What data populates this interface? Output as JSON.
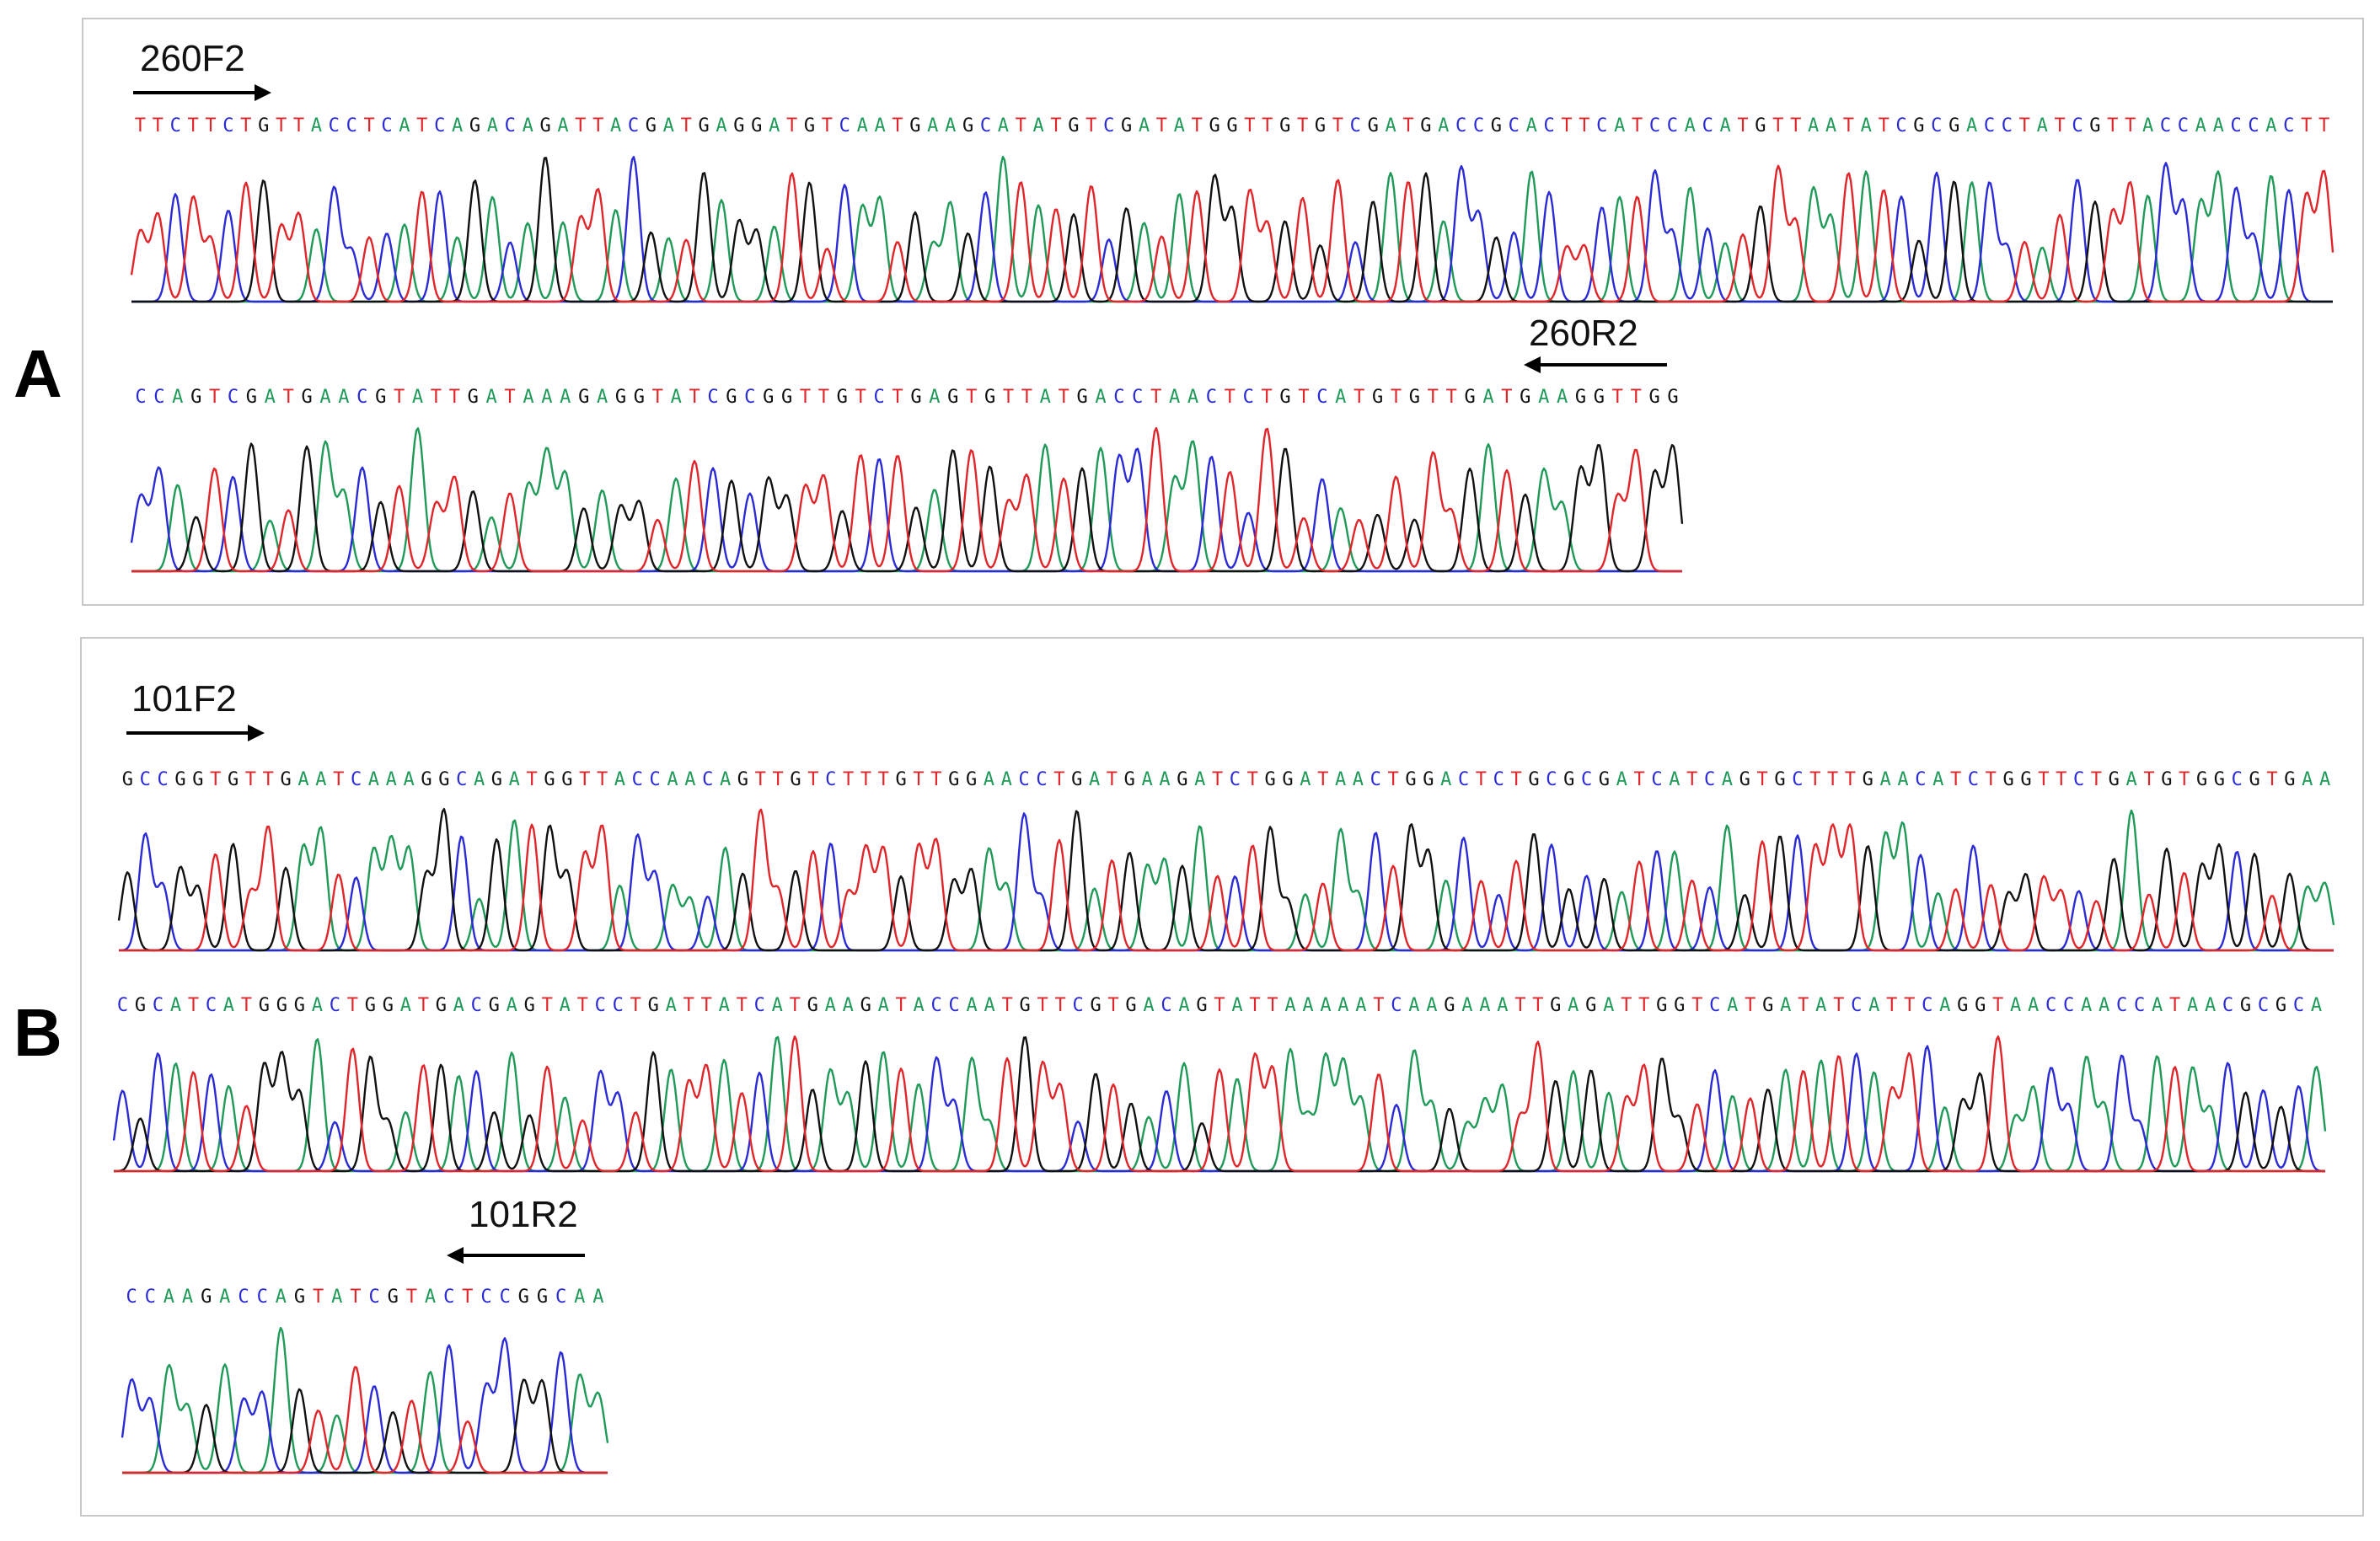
{
  "colors": {
    "A": "#1f9a59",
    "C": "#2b2bd6",
    "G": "#111111",
    "T": "#e0262a"
  },
  "panels": [
    {
      "letter": "A",
      "rows": [
        {
          "sequence": "TTCTTCTGTTACCTCATCAGACAGATTACGATGAGGATGTCAATGAAGCATATGTCGATATGGTTGTGTCGATGACCGCACTTCATCCACATGTTAATATCGCGACCTATCGTTACCAACCACTT"
        },
        {
          "sequence": "CCAGTCGATGAACGTATTGATAAAGAGGTATCGCGGTTGTCTGAGTGTTATGACCTAACTCTGTCATGTGTTGATGAAGGTTGG"
        }
      ],
      "primers": {
        "forward": "260F2",
        "reverse": "260R2"
      }
    },
    {
      "letter": "B",
      "rows": [
        {
          "sequence": "GCCGGTGTTGAATCAAAGGCAGATGGTTACCAACAGTTGTCTTTGTTGGAACCTGATGAAGATCTGGATAACTGGACTCTGCGCGATCATCAGTGCTTTGAACATCTGGTTCTGATGTGGCGTGAA"
        },
        {
          "sequence": "CGCATCATGGGACTGGATGACGAGTATCCTGATTATCATGAAGATACCAATGTTCGTGACAGTATTAAAAATCAAGAAATTGAGATTGGTCATGATATCATTCAGGTAACCAACCATAACGCGCA"
        },
        {
          "sequence": "CCAAGACCAGTATCGTACTCCGGCAA"
        }
      ],
      "primers": {
        "forward": "101F2",
        "reverse": "101R2"
      }
    }
  ]
}
